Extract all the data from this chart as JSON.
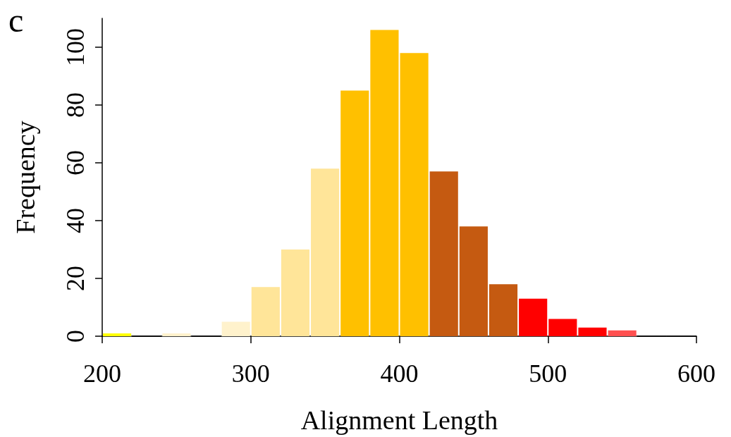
{
  "chart_data": {
    "type": "histogram",
    "xlabel": "Alignment Length",
    "ylabel": "Frequency",
    "annotations": [
      "c"
    ],
    "bins": [
      200,
      220,
      240,
      260,
      280,
      300,
      320,
      340,
      360,
      380,
      400,
      420,
      440,
      460,
      480,
      500,
      520,
      540,
      560,
      580,
      600
    ],
    "values": [
      1,
      0,
      1,
      0,
      5,
      17,
      30,
      58,
      85,
      106,
      98,
      57,
      38,
      18,
      13,
      6,
      3,
      2,
      0,
      0
    ],
    "colors": [
      "#ffff00",
      "#000000",
      "#fff2cc",
      "#000000",
      "#fff2cc",
      "#ffe599",
      "#ffe599",
      "#ffe599",
      "#ffc000",
      "#ffc000",
      "#ffc000",
      "#c55a11",
      "#c55a11",
      "#c55a11",
      "#ff0000",
      "#ff0000",
      "#ff0000",
      "#ff5050",
      "#000000",
      "#000000"
    ],
    "xlim": [
      200,
      600
    ],
    "xticks": [
      200,
      300,
      400,
      500,
      600
    ],
    "ylim": [
      0,
      110
    ],
    "yticks": [
      0,
      20,
      40,
      60,
      80,
      100
    ],
    "grid": false
  }
}
